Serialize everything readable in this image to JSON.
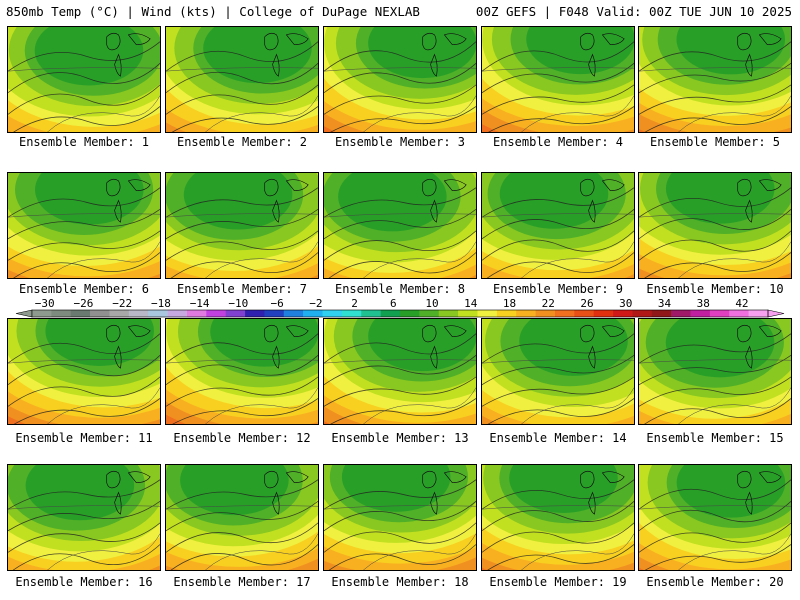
{
  "header": {
    "left": "850mb Temp (°C) | Wind (kts) | College of DuPage NEXLAB",
    "right": "00Z GEFS | F048 Valid: 00Z TUE JUN 10 2025"
  },
  "panels": [
    {
      "label": "Ensemble Member: 1"
    },
    {
      "label": "Ensemble Member: 2"
    },
    {
      "label": "Ensemble Member: 3"
    },
    {
      "label": "Ensemble Member: 4"
    },
    {
      "label": "Ensemble Member: 5"
    },
    {
      "label": "Ensemble Member: 6"
    },
    {
      "label": "Ensemble Member: 7"
    },
    {
      "label": "Ensemble Member: 8"
    },
    {
      "label": "Ensemble Member: 9"
    },
    {
      "label": "Ensemble Member: 10"
    },
    {
      "label": "Ensemble Member: 11"
    },
    {
      "label": "Ensemble Member: 12"
    },
    {
      "label": "Ensemble Member: 13"
    },
    {
      "label": "Ensemble Member: 14"
    },
    {
      "label": "Ensemble Member: 15"
    },
    {
      "label": "Ensemble Member: 16"
    },
    {
      "label": "Ensemble Member: 17"
    },
    {
      "label": "Ensemble Member: 18"
    },
    {
      "label": "Ensemble Member: 19"
    },
    {
      "label": "Ensemble Member: 20"
    }
  ],
  "colorbar": {
    "labels": [
      "−30",
      "−26",
      "−22",
      "−18",
      "−14",
      "−10",
      "−6",
      "−2",
      "2",
      "6",
      "10",
      "14",
      "18",
      "22",
      "26",
      "30",
      "34",
      "38",
      "42"
    ],
    "colors": [
      "#8f9a8e",
      "#7d8a7e",
      "#6b7a70",
      "#909090",
      "#a8a8a8",
      "#b8b8c8",
      "#a9c8e0",
      "#c8a8e0",
      "#e07ae0",
      "#c040e0",
      "#8040d0",
      "#3020b0",
      "#2040c0",
      "#2080e0",
      "#20b0f0",
      "#30d0f0",
      "#30e0d0",
      "#20c090",
      "#10a050",
      "#28a028",
      "#50b028",
      "#88c820",
      "#c0e020",
      "#f0f040",
      "#f8d020",
      "#f8b020",
      "#f09020",
      "#f07020",
      "#e85018",
      "#e03010",
      "#d01818",
      "#b01818",
      "#901818",
      "#a01868",
      "#c020a0",
      "#e040c0",
      "#f070e0",
      "#f8a0f0"
    ]
  }
}
